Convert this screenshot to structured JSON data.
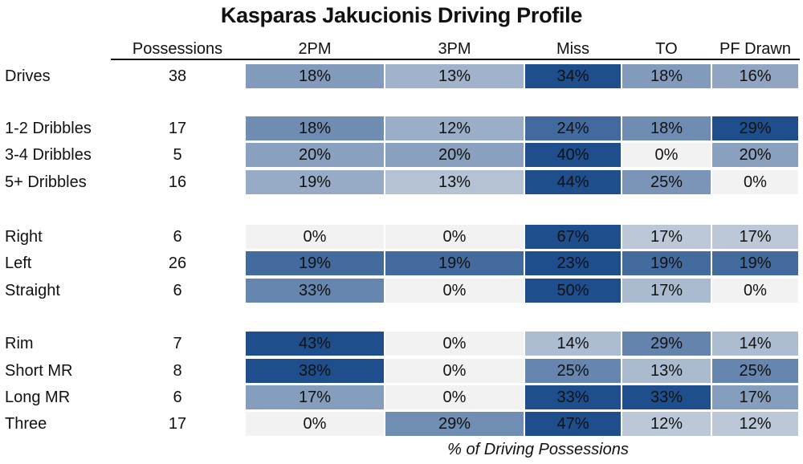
{
  "chart_data": {
    "type": "table",
    "title": "Kasparas Jakucionis Driving Profile",
    "xlabel": "% of Driving Possessions",
    "columns": [
      "Possessions",
      "2PM",
      "3PM",
      "Miss",
      "TO",
      "PF Drawn"
    ],
    "groups": [
      {
        "rows": [
          {
            "label": "Drives",
            "possessions": 38,
            "values": [
              "18%",
              "13%",
              "34%",
              "18%",
              "16%"
            ]
          }
        ]
      },
      {
        "rows": [
          {
            "label": "1-2 Dribbles",
            "possessions": 17,
            "values": [
              "18%",
              "12%",
              "24%",
              "18%",
              "29%"
            ]
          },
          {
            "label": "3-4 Dribbles",
            "possessions": 5,
            "values": [
              "20%",
              "20%",
              "40%",
              "0%",
              "20%"
            ]
          },
          {
            "label": "5+ Dribbles",
            "possessions": 16,
            "values": [
              "19%",
              "13%",
              "44%",
              "25%",
              "0%"
            ]
          }
        ]
      },
      {
        "rows": [
          {
            "label": "Right",
            "possessions": 6,
            "values": [
              "0%",
              "0%",
              "67%",
              "17%",
              "17%"
            ]
          },
          {
            "label": "Left",
            "possessions": 26,
            "values": [
              "19%",
              "19%",
              "23%",
              "19%",
              "19%"
            ]
          },
          {
            "label": "Straight",
            "possessions": 6,
            "values": [
              "33%",
              "0%",
              "50%",
              "17%",
              "0%"
            ]
          }
        ]
      },
      {
        "rows": [
          {
            "label": "Rim",
            "possessions": 7,
            "values": [
              "43%",
              "0%",
              "14%",
              "29%",
              "14%"
            ]
          },
          {
            "label": "Short MR",
            "possessions": 8,
            "values": [
              "38%",
              "0%",
              "25%",
              "13%",
              "25%"
            ]
          },
          {
            "label": "Long MR",
            "possessions": 6,
            "values": [
              "17%",
              "0%",
              "33%",
              "33%",
              "17%"
            ]
          },
          {
            "label": "Three",
            "possessions": 17,
            "values": [
              "0%",
              "29%",
              "47%",
              "12%",
              "12%"
            ]
          }
        ]
      }
    ],
    "colors": {
      "low": "#f2f2f2",
      "high": "#1f4e8c",
      "text": "#111111"
    }
  }
}
